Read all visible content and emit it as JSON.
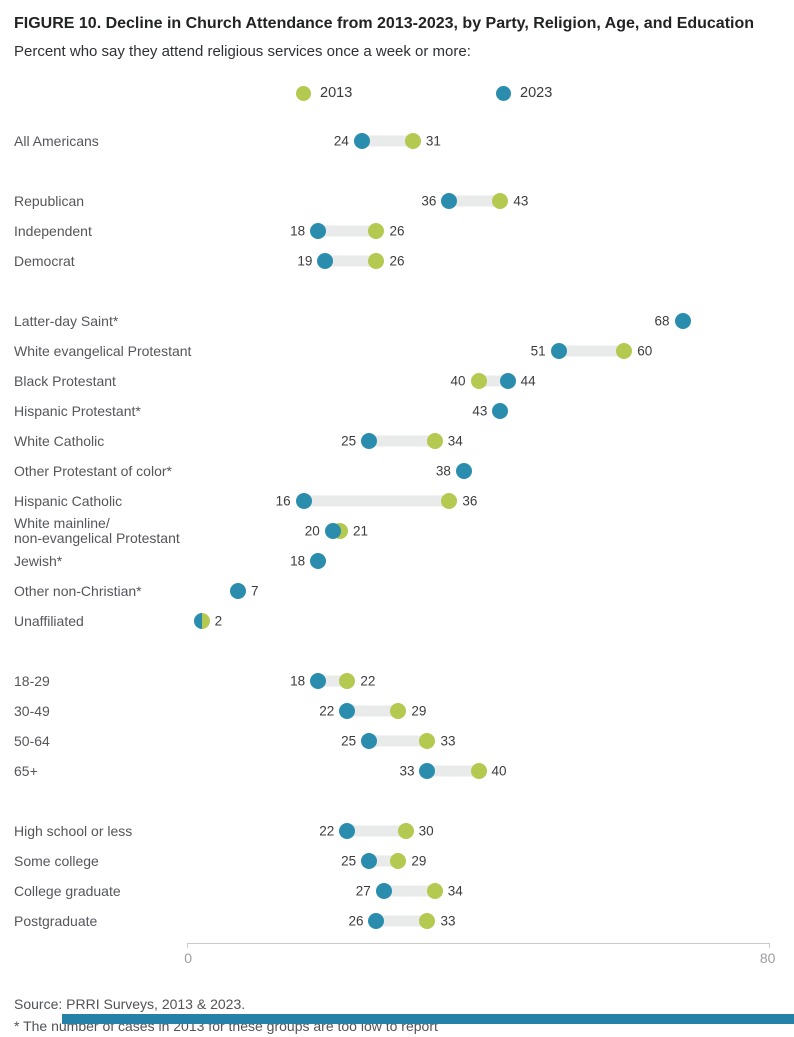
{
  "header": {
    "title": "FIGURE 10. Decline in Church Attendance from 2013-2023, by Party, Religion, Age, and Education",
    "subtitle": "Percent who say they attend religious services once a week or more:"
  },
  "chart_data": {
    "type": "dumbbell-dot",
    "title": "FIGURE 10. Decline in Church Attendance from 2013-2023, by Party, Religion, Age, and Education",
    "subtitle": "Percent who say they attend religious services once a week or more:",
    "xlim": [
      0,
      80
    ],
    "x_ticks": [
      0,
      80
    ],
    "grid": false,
    "legend_position": "top",
    "connector_color": "#e9eaea",
    "series": [
      {
        "name": "2013",
        "color": "#b3c94f"
      },
      {
        "name": "2023",
        "color": "#2b8dad"
      }
    ],
    "groups": [
      {
        "group": "overall",
        "rows": [
          {
            "label": "All Americans",
            "v2013": 31,
            "v2023": 24
          }
        ]
      },
      {
        "group": "party",
        "rows": [
          {
            "label": "Republican",
            "v2013": 43,
            "v2023": 36
          },
          {
            "label": "Independent",
            "v2013": 26,
            "v2023": 18
          },
          {
            "label": "Democrat",
            "v2013": 26,
            "v2023": 19
          }
        ]
      },
      {
        "group": "religion",
        "rows": [
          {
            "label": "Latter-day Saint*",
            "v2013": null,
            "v2023": 68,
            "num_side": "left"
          },
          {
            "label": "White evangelical Protestant",
            "v2013": 60,
            "v2023": 51
          },
          {
            "label": "Black Protestant",
            "v2013": 40,
            "v2023": 44
          },
          {
            "label": "Hispanic Protestant*",
            "v2013": null,
            "v2023": 43,
            "num_side": "left"
          },
          {
            "label": "White Catholic",
            "v2013": 34,
            "v2023": 25
          },
          {
            "label": "Other Protestant of color*",
            "v2013": null,
            "v2023": 38,
            "num_side": "left"
          },
          {
            "label": "Hispanic Catholic",
            "v2013": 36,
            "v2023": 16
          },
          {
            "label": "White mainline/",
            "label2": "non-evangelical Protestant",
            "v2013": 21,
            "v2023": 20
          },
          {
            "label": "Jewish*",
            "v2013": null,
            "v2023": 18,
            "num_side": "left"
          },
          {
            "label": "Other non-Christian*",
            "v2013": null,
            "v2023": 7,
            "num_side": "right"
          },
          {
            "label": "Unaffiliated",
            "v2013": 2,
            "v2023": 2,
            "split": true,
            "num_side": "right"
          }
        ]
      },
      {
        "group": "age",
        "rows": [
          {
            "label": "18-29",
            "v2013": 22,
            "v2023": 18
          },
          {
            "label": "30-49",
            "v2013": 29,
            "v2023": 22
          },
          {
            "label": "50-64",
            "v2013": 33,
            "v2023": 25
          },
          {
            "label": "65+",
            "v2013": 40,
            "v2023": 33
          }
        ]
      },
      {
        "group": "education",
        "rows": [
          {
            "label": "High school or less",
            "v2013": 30,
            "v2023": 22
          },
          {
            "label": "Some college",
            "v2013": 29,
            "v2023": 25
          },
          {
            "label": "College graduate",
            "v2013": 34,
            "v2023": 27
          },
          {
            "label": "Postgraduate",
            "v2013": 33,
            "v2023": 26
          }
        ]
      }
    ]
  },
  "footer": {
    "source": "Source: PRRI Surveys, 2013 & 2023.",
    "footnote": "* The number of cases in 2013 for these groups are too low to report",
    "accent_bar_color": "#2581a8"
  }
}
